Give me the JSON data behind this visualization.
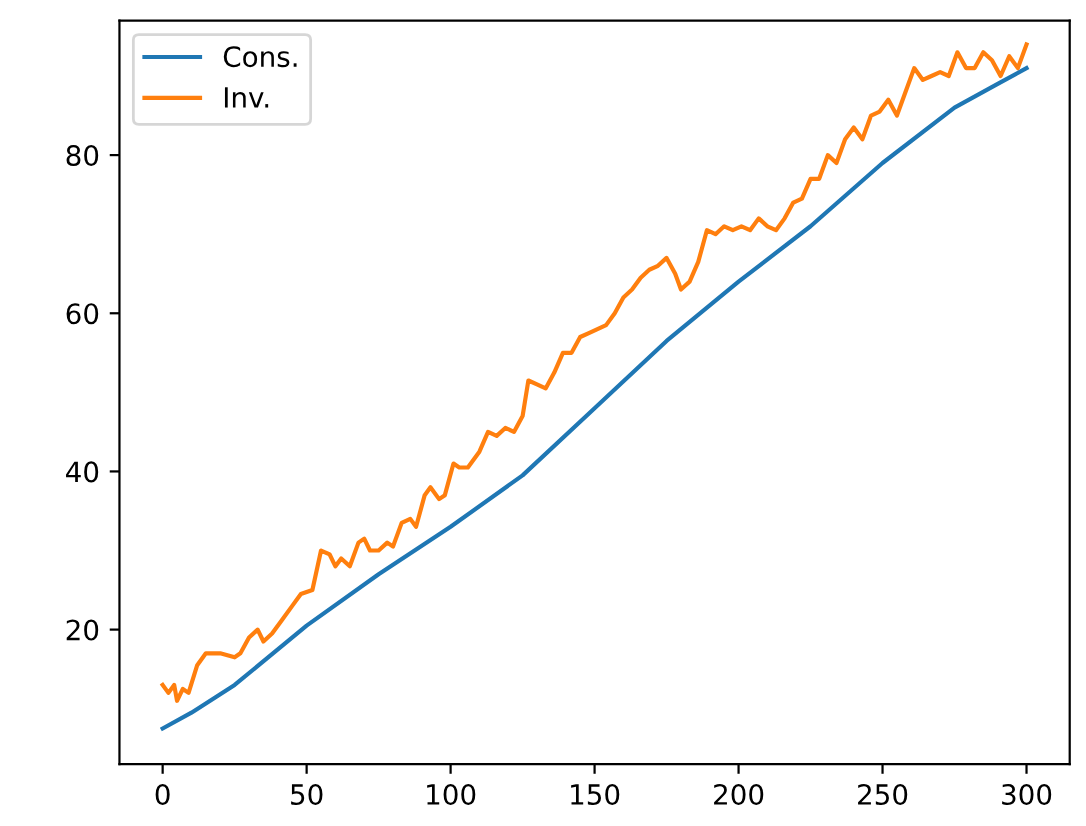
{
  "chart_data": {
    "type": "line",
    "xlim": [
      -15,
      315
    ],
    "ylim": [
      3,
      97
    ],
    "xticks": [
      0,
      50,
      100,
      150,
      200,
      250,
      300
    ],
    "yticks": [
      20,
      40,
      60,
      80
    ],
    "legend": "top left",
    "grid": false,
    "series": [
      {
        "name": "Cons.",
        "color": "#1f77b4",
        "x": [
          0,
          10,
          25,
          50,
          75,
          100,
          125,
          150,
          175,
          200,
          225,
          250,
          275,
          290,
          300
        ],
        "values": [
          7.5,
          9.5,
          13,
          20.5,
          27,
          33,
          39.5,
          48,
          56.5,
          64,
          71,
          79,
          86,
          89,
          91
        ]
      },
      {
        "name": "Inv.",
        "color": "#ff7f0e",
        "x": [
          0,
          2,
          4,
          5,
          7,
          9,
          12,
          15,
          20,
          25,
          27,
          30,
          33,
          35,
          38,
          41,
          45,
          48,
          52,
          55,
          58,
          60,
          62,
          65,
          68,
          70,
          72,
          75,
          78,
          80,
          83,
          86,
          88,
          91,
          93,
          96,
          98,
          101,
          103,
          106,
          110,
          113,
          116,
          119,
          122,
          125,
          127,
          130,
          133,
          136,
          139,
          142,
          145,
          148,
          151,
          154,
          157,
          160,
          163,
          166,
          169,
          172,
          175,
          178,
          180,
          183,
          186,
          189,
          192,
          195,
          198,
          201,
          204,
          207,
          210,
          213,
          216,
          219,
          222,
          225,
          228,
          231,
          234,
          237,
          240,
          243,
          246,
          249,
          252,
          255,
          258,
          261,
          264,
          267,
          270,
          273,
          276,
          279,
          282,
          285,
          288,
          291,
          294,
          297,
          300
        ],
        "values": [
          13,
          12,
          13,
          11,
          12.5,
          12,
          15.5,
          17,
          17,
          16.5,
          17,
          19,
          20,
          18.5,
          19.5,
          21,
          23,
          24.5,
          25,
          30,
          29.5,
          28,
          29,
          28,
          31,
          31.5,
          30,
          30,
          31,
          30.5,
          33.5,
          34,
          33,
          37,
          38,
          36.5,
          37,
          41,
          40.5,
          40.5,
          42.5,
          45,
          44.5,
          45.5,
          45,
          47,
          51.5,
          51,
          50.5,
          52.5,
          55,
          55,
          57,
          57.5,
          58,
          58.5,
          60,
          62,
          63,
          64.5,
          65.5,
          66,
          67,
          65,
          63,
          64,
          66.5,
          70.5,
          70,
          71,
          70.5,
          71,
          70.5,
          72,
          71,
          70.5,
          72,
          74,
          74.5,
          77,
          77,
          80,
          79,
          82,
          83.5,
          82,
          85,
          85.5,
          87,
          85,
          88,
          91,
          89.5,
          90,
          90.5,
          90,
          93,
          91,
          91,
          93,
          92,
          90,
          92.5,
          91,
          94
        ]
      }
    ]
  }
}
